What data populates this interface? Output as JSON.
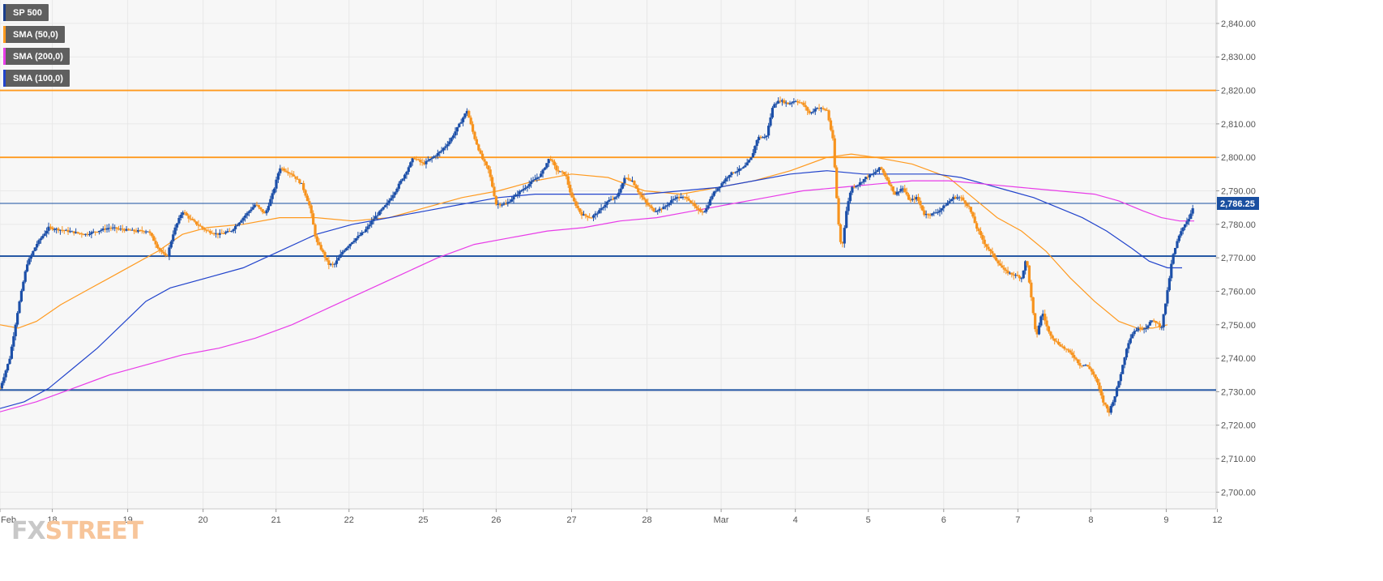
{
  "legend": [
    {
      "label": "SP 500",
      "color": "#1a3e8c"
    },
    {
      "label": "SMA (50,0)",
      "color": "#ff9a1f"
    },
    {
      "label": "SMA (200,0)",
      "color": "#e83ce8"
    },
    {
      "label": "SMA (100,0)",
      "color": "#2244cc"
    }
  ],
  "logo": {
    "part1": "FX",
    "part2": "STREET"
  },
  "colors": {
    "up": "#1c4fa8",
    "down": "#f7931e",
    "sma50": "#ff9a1f",
    "sma100": "#2244cc",
    "sma200": "#e83ce8",
    "resistance": "#ff9a1f",
    "support": "#1a4fa0",
    "grid": "#e8e8e8",
    "plot_bg": "#f7f7f7"
  },
  "chart_data": {
    "type": "candlestick",
    "symbol": "SP 500",
    "ylim": [
      2695,
      2847
    ],
    "x_range": [
      0,
      1000
    ],
    "y_ticks": [
      "2,700.00",
      "2,710.00",
      "2,720.00",
      "2,730.00",
      "2,740.00",
      "2,750.00",
      "2,760.00",
      "2,770.00",
      "2,780.00",
      "2,790.00",
      "2,800.00",
      "2,810.00",
      "2,820.00",
      "2,830.00",
      "2,840.00"
    ],
    "y_tick_values": [
      2700,
      2710,
      2720,
      2730,
      2740,
      2750,
      2760,
      2770,
      2780,
      2790,
      2800,
      2810,
      2820,
      2830,
      2840
    ],
    "x_ticks": [
      "Feb",
      "18",
      "19",
      "20",
      "21",
      "22",
      "25",
      "26",
      "27",
      "28",
      "Mar",
      "4",
      "5",
      "6",
      "7",
      "8",
      "9",
      "12"
    ],
    "x_tick_positions": [
      0,
      43,
      105,
      167,
      227,
      287,
      348,
      408,
      470,
      532,
      593,
      654,
      714,
      776,
      837,
      897,
      959,
      1001
    ],
    "last_price": "2,786.25",
    "last_price_value": 2786.25,
    "horizontal_levels": [
      {
        "value": 2820,
        "role": "resistance"
      },
      {
        "value": 2800,
        "role": "resistance"
      },
      {
        "value": 2770.5,
        "role": "support"
      },
      {
        "value": 2730.5,
        "role": "support"
      }
    ],
    "price_path": [
      [
        0,
        2731
      ],
      [
        8,
        2740
      ],
      [
        15,
        2755
      ],
      [
        22,
        2768
      ],
      [
        30,
        2774
      ],
      [
        40,
        2779
      ],
      [
        55,
        2778
      ],
      [
        70,
        2777
      ],
      [
        90,
        2779
      ],
      [
        110,
        2778
      ],
      [
        122,
        2778
      ],
      [
        130,
        2773
      ],
      [
        137,
        2770
      ],
      [
        143,
        2778
      ],
      [
        150,
        2784
      ],
      [
        155,
        2782
      ],
      [
        162,
        2780
      ],
      [
        170,
        2778
      ],
      [
        180,
        2777
      ],
      [
        190,
        2778
      ],
      [
        200,
        2782
      ],
      [
        210,
        2786
      ],
      [
        218,
        2783
      ],
      [
        225,
        2790
      ],
      [
        230,
        2797
      ],
      [
        240,
        2795
      ],
      [
        248,
        2792
      ],
      [
        255,
        2785
      ],
      [
        260,
        2775
      ],
      [
        265,
        2772
      ],
      [
        270,
        2768
      ],
      [
        275,
        2768
      ],
      [
        282,
        2772
      ],
      [
        290,
        2775
      ],
      [
        300,
        2778
      ],
      [
        308,
        2782
      ],
      [
        318,
        2786
      ],
      [
        325,
        2790
      ],
      [
        333,
        2795
      ],
      [
        340,
        2800
      ],
      [
        348,
        2798
      ],
      [
        356,
        2800
      ],
      [
        363,
        2802
      ],
      [
        370,
        2805
      ],
      [
        378,
        2810
      ],
      [
        384,
        2814
      ],
      [
        390,
        2806
      ],
      [
        396,
        2800
      ],
      [
        402,
        2796
      ],
      [
        408,
        2786
      ],
      [
        416,
        2786
      ],
      [
        425,
        2789
      ],
      [
        435,
        2792
      ],
      [
        445,
        2795
      ],
      [
        452,
        2800
      ],
      [
        458,
        2796
      ],
      [
        465,
        2795
      ],
      [
        470,
        2788
      ],
      [
        478,
        2783
      ],
      [
        486,
        2782
      ],
      [
        493,
        2784
      ],
      [
        500,
        2787
      ],
      [
        507,
        2788
      ],
      [
        514,
        2794
      ],
      [
        520,
        2793
      ],
      [
        526,
        2789
      ],
      [
        532,
        2786
      ],
      [
        538,
        2784
      ],
      [
        546,
        2785
      ],
      [
        555,
        2788
      ],
      [
        565,
        2788
      ],
      [
        574,
        2784
      ],
      [
        580,
        2784
      ],
      [
        586,
        2789
      ],
      [
        593,
        2792
      ],
      [
        600,
        2795
      ],
      [
        606,
        2796
      ],
      [
        612,
        2797
      ],
      [
        618,
        2800
      ],
      [
        623,
        2806
      ],
      [
        630,
        2806
      ],
      [
        636,
        2816
      ],
      [
        642,
        2817
      ],
      [
        648,
        2816
      ],
      [
        654,
        2817
      ],
      [
        660,
        2816
      ],
      [
        666,
        2813
      ],
      [
        672,
        2815
      ],
      [
        680,
        2814
      ],
      [
        685,
        2805
      ],
      [
        689,
        2782
      ],
      [
        692,
        2772
      ],
      [
        696,
        2784
      ],
      [
        700,
        2791
      ],
      [
        706,
        2792
      ],
      [
        712,
        2794
      ],
      [
        718,
        2795
      ],
      [
        724,
        2797
      ],
      [
        730,
        2793
      ],
      [
        736,
        2789
      ],
      [
        742,
        2791
      ],
      [
        748,
        2787
      ],
      [
        754,
        2788
      ],
      [
        760,
        2783
      ],
      [
        766,
        2783
      ],
      [
        772,
        2784
      ],
      [
        778,
        2786
      ],
      [
        784,
        2788
      ],
      [
        790,
        2788
      ],
      [
        797,
        2785
      ],
      [
        803,
        2779
      ],
      [
        810,
        2774
      ],
      [
        818,
        2770
      ],
      [
        826,
        2766
      ],
      [
        833,
        2765
      ],
      [
        840,
        2764
      ],
      [
        844,
        2770
      ],
      [
        848,
        2758
      ],
      [
        852,
        2746
      ],
      [
        857,
        2754
      ],
      [
        862,
        2748
      ],
      [
        868,
        2745
      ],
      [
        875,
        2743
      ],
      [
        882,
        2741
      ],
      [
        888,
        2738
      ],
      [
        893,
        2738
      ],
      [
        898,
        2736
      ],
      [
        902,
        2733
      ],
      [
        907,
        2727
      ],
      [
        912,
        2724
      ],
      [
        917,
        2729
      ],
      [
        922,
        2736
      ],
      [
        927,
        2744
      ],
      [
        932,
        2748
      ],
      [
        937,
        2749
      ],
      [
        942,
        2749
      ],
      [
        946,
        2751
      ],
      [
        950,
        2751
      ],
      [
        955,
        2749
      ],
      [
        960,
        2760
      ],
      [
        964,
        2770
      ],
      [
        969,
        2776
      ],
      [
        974,
        2780
      ],
      [
        978,
        2782
      ],
      [
        982,
        2786.25
      ]
    ],
    "series": [
      {
        "name": "SMA (50,0)",
        "key": "sma50",
        "points": [
          [
            0,
            2750
          ],
          [
            15,
            2749
          ],
          [
            30,
            2751
          ],
          [
            50,
            2756
          ],
          [
            70,
            2760
          ],
          [
            100,
            2766
          ],
          [
            130,
            2772
          ],
          [
            150,
            2777
          ],
          [
            170,
            2779
          ],
          [
            200,
            2780
          ],
          [
            230,
            2782
          ],
          [
            260,
            2782
          ],
          [
            290,
            2781
          ],
          [
            320,
            2782
          ],
          [
            350,
            2785
          ],
          [
            380,
            2788
          ],
          [
            410,
            2790
          ],
          [
            440,
            2793
          ],
          [
            470,
            2795
          ],
          [
            500,
            2794
          ],
          [
            530,
            2790
          ],
          [
            560,
            2789
          ],
          [
            590,
            2791
          ],
          [
            620,
            2793
          ],
          [
            650,
            2796
          ],
          [
            680,
            2800
          ],
          [
            700,
            2801
          ],
          [
            720,
            2800
          ],
          [
            750,
            2798
          ],
          [
            780,
            2794
          ],
          [
            800,
            2788
          ],
          [
            820,
            2782
          ],
          [
            840,
            2778
          ],
          [
            860,
            2772
          ],
          [
            880,
            2764
          ],
          [
            900,
            2757
          ],
          [
            920,
            2751
          ],
          [
            935,
            2749
          ],
          [
            948,
            2749
          ],
          [
            960,
            2750
          ]
        ]
      },
      {
        "name": "SMA (100,0)",
        "key": "sma100",
        "points": [
          [
            0,
            2725
          ],
          [
            20,
            2727
          ],
          [
            40,
            2731
          ],
          [
            60,
            2737
          ],
          [
            80,
            2743
          ],
          [
            100,
            2750
          ],
          [
            120,
            2757
          ],
          [
            140,
            2761
          ],
          [
            170,
            2764
          ],
          [
            200,
            2767
          ],
          [
            230,
            2772
          ],
          [
            260,
            2777
          ],
          [
            290,
            2780
          ],
          [
            320,
            2782
          ],
          [
            350,
            2784
          ],
          [
            380,
            2786
          ],
          [
            410,
            2788
          ],
          [
            440,
            2789
          ],
          [
            470,
            2789
          ],
          [
            500,
            2789
          ],
          [
            530,
            2789
          ],
          [
            560,
            2790
          ],
          [
            590,
            2791
          ],
          [
            620,
            2793
          ],
          [
            650,
            2795
          ],
          [
            680,
            2796
          ],
          [
            710,
            2795
          ],
          [
            740,
            2795
          ],
          [
            770,
            2795
          ],
          [
            790,
            2794
          ],
          [
            810,
            2792
          ],
          [
            830,
            2790
          ],
          [
            850,
            2788
          ],
          [
            870,
            2785
          ],
          [
            890,
            2782
          ],
          [
            910,
            2778
          ],
          [
            930,
            2773
          ],
          [
            945,
            2769
          ],
          [
            960,
            2767
          ],
          [
            972,
            2767
          ]
        ]
      },
      {
        "name": "SMA (200,0)",
        "key": "sma200",
        "points": [
          [
            0,
            2724
          ],
          [
            30,
            2727
          ],
          [
            60,
            2731
          ],
          [
            90,
            2735
          ],
          [
            120,
            2738
          ],
          [
            150,
            2741
          ],
          [
            180,
            2743
          ],
          [
            210,
            2746
          ],
          [
            240,
            2750
          ],
          [
            270,
            2755
          ],
          [
            300,
            2760
          ],
          [
            330,
            2765
          ],
          [
            360,
            2770
          ],
          [
            390,
            2774
          ],
          [
            420,
            2776
          ],
          [
            450,
            2778
          ],
          [
            480,
            2779
          ],
          [
            510,
            2781
          ],
          [
            540,
            2782
          ],
          [
            570,
            2784
          ],
          [
            600,
            2786
          ],
          [
            630,
            2788
          ],
          [
            660,
            2790
          ],
          [
            690,
            2791
          ],
          [
            720,
            2792
          ],
          [
            750,
            2793
          ],
          [
            780,
            2793
          ],
          [
            810,
            2792
          ],
          [
            840,
            2791
          ],
          [
            870,
            2790
          ],
          [
            900,
            2789
          ],
          [
            920,
            2787
          ],
          [
            940,
            2784
          ],
          [
            955,
            2782
          ],
          [
            970,
            2781
          ],
          [
            982,
            2781
          ]
        ]
      }
    ]
  }
}
